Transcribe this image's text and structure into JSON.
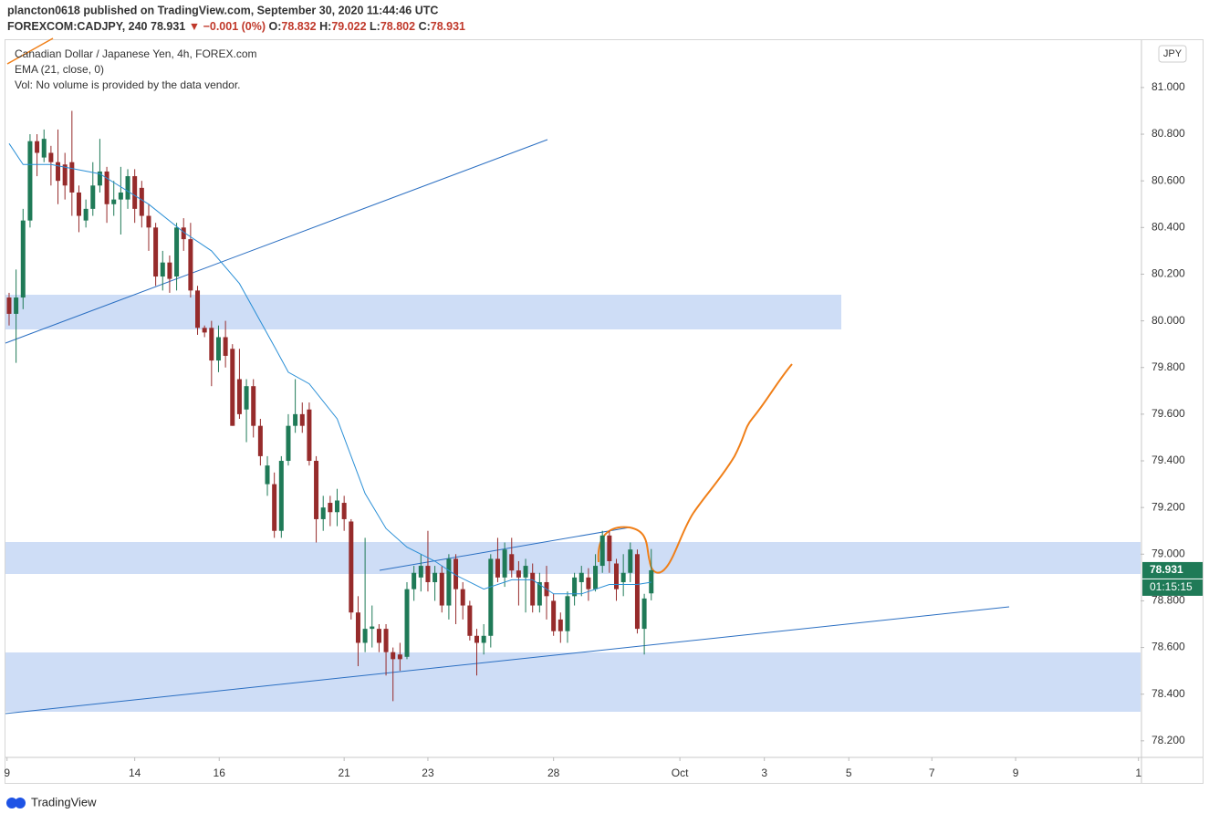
{
  "header": {
    "publisher": "plancton0618 published on TradingView.com, September 30, 2020 11:44:46 UTC",
    "symbol": "FOREXCOM:CADJPY, 240",
    "change": "▼ −0.001 (0%)",
    "ohlc_keys": [
      "O:",
      "H:",
      "L:",
      "C:"
    ],
    "instrument": "Canadian Dollar / Japanese Yen, 4h, FOREX.com",
    "volume_note": "Vol: No volume is provided by the data vendor.",
    "currency_button": "JPY",
    "brand": "TradingView"
  },
  "chart_data": {
    "type": "candlestick",
    "up_color": "#1f7a57",
    "down_color": "#962b2b",
    "open": [
      80.1,
      80.03,
      80.1,
      80.43,
      80.77,
      80.7,
      80.72,
      80.68,
      80.67,
      80.68,
      80.55,
      80.43,
      80.48,
      80.58,
      80.64,
      80.5,
      80.52,
      80.52,
      80.62,
      80.57,
      80.45,
      80.4,
      80.19,
      80.25,
      80.19,
      80.4,
      80.35,
      80.13,
      79.97,
      79.97,
      79.83,
      79.93,
      79.88,
      79.75,
      79.62,
      79.72,
      79.55,
      79.3,
      79.3,
      79.1,
      79.4,
      79.55,
      79.6,
      79.62,
      79.4,
      79.15,
      79.22,
      79.18,
      79.22,
      79.14,
      78.75,
      78.62,
      78.68,
      78.68,
      78.68,
      78.58,
      78.57,
      78.56,
      78.85,
      78.9,
      78.95,
      78.88,
      78.92,
      78.78,
      78.98,
      78.85,
      78.78,
      78.65,
      78.62,
      78.65,
      78.98,
      78.9,
      79.0,
      78.93,
      78.9,
      78.92,
      78.78,
      78.88,
      78.8,
      78.72,
      78.67,
      78.82,
      78.88,
      78.9,
      78.85,
      78.95,
      79.08,
      78.96,
      78.88,
      78.92,
      79.0,
      78.68,
      78.832
    ],
    "high": [
      80.12,
      80.22,
      80.48,
      80.8,
      80.8,
      80.82,
      80.75,
      80.82,
      80.72,
      80.9,
      80.58,
      80.52,
      80.68,
      80.78,
      80.66,
      80.6,
      80.66,
      80.65,
      80.65,
      80.6,
      80.5,
      80.42,
      80.3,
      80.28,
      80.42,
      80.44,
      80.42,
      80.15,
      79.98,
      80.0,
      79.98,
      80.0,
      79.9,
      79.88,
      79.75,
      79.75,
      79.58,
      79.42,
      79.35,
      79.42,
      79.6,
      79.75,
      79.65,
      79.65,
      79.42,
      79.25,
      79.25,
      79.28,
      79.25,
      79.15,
      78.82,
      79.07,
      78.78,
      78.7,
      78.7,
      78.6,
      78.62,
      78.88,
      78.95,
      79.0,
      79.1,
      78.95,
      78.95,
      79.0,
      79.0,
      78.88,
      78.8,
      78.68,
      78.7,
      79.0,
      79.07,
      79.05,
      79.07,
      78.97,
      78.98,
      78.96,
      78.92,
      78.95,
      78.83,
      78.75,
      78.84,
      78.92,
      78.95,
      78.94,
      79.0,
      79.1,
      79.1,
      78.98,
      79.0,
      79.05,
      79.02,
      78.83,
      79.022
    ],
    "low": [
      79.98,
      79.82,
      80.05,
      80.4,
      80.62,
      80.68,
      80.58,
      80.5,
      80.52,
      80.45,
      80.38,
      80.4,
      80.45,
      80.55,
      80.42,
      80.45,
      80.37,
      80.48,
      80.42,
      80.4,
      80.3,
      80.15,
      80.13,
      80.12,
      80.13,
      80.3,
      80.1,
      79.94,
      79.93,
      79.72,
      79.78,
      79.8,
      79.55,
      79.58,
      79.48,
      79.5,
      79.38,
      79.25,
      79.07,
      79.07,
      79.38,
      79.52,
      79.52,
      79.38,
      79.05,
      79.1,
      79.12,
      79.12,
      79.1,
      78.72,
      78.52,
      78.58,
      78.6,
      78.58,
      78.48,
      78.37,
      78.5,
      78.55,
      78.8,
      78.84,
      78.84,
      78.8,
      78.75,
      78.72,
      78.7,
      78.72,
      78.63,
      78.48,
      78.57,
      78.6,
      78.88,
      78.86,
      78.9,
      78.78,
      78.75,
      78.75,
      78.75,
      78.72,
      78.65,
      78.62,
      78.62,
      78.78,
      78.82,
      78.8,
      78.84,
      78.92,
      78.92,
      78.8,
      78.82,
      78.88,
      78.66,
      78.57,
      78.802
    ],
    "close": [
      80.03,
      80.1,
      80.43,
      80.77,
      80.72,
      80.78,
      80.68,
      80.6,
      80.58,
      80.55,
      80.45,
      80.48,
      80.58,
      80.64,
      80.5,
      80.52,
      80.55,
      80.62,
      80.48,
      80.45,
      80.4,
      80.19,
      80.25,
      80.18,
      80.4,
      80.35,
      80.13,
      79.97,
      79.95,
      79.83,
      79.93,
      79.85,
      79.55,
      79.6,
      79.72,
      79.55,
      79.42,
      79.38,
      79.1,
      79.4,
      79.55,
      79.6,
      79.55,
      79.4,
      79.15,
      79.2,
      79.18,
      79.23,
      79.15,
      78.75,
      78.62,
      78.68,
      78.69,
      78.62,
      78.58,
      78.55,
      78.55,
      78.85,
      78.92,
      78.95,
      78.88,
      78.92,
      78.78,
      78.98,
      78.85,
      78.78,
      78.65,
      78.62,
      78.65,
      78.98,
      78.9,
      79.02,
      78.93,
      78.9,
      78.95,
      78.78,
      78.88,
      78.82,
      78.67,
      78.67,
      78.82,
      78.9,
      78.92,
      78.85,
      78.95,
      79.08,
      78.97,
      78.85,
      78.92,
      79.02,
      78.68,
      78.81,
      78.931
    ],
    "ema": {
      "name": "EMA (21, close, 0)",
      "color": "#2a8fd6",
      "x": [
        0,
        2,
        6,
        13,
        20,
        25,
        29,
        33,
        38,
        40,
        43,
        47,
        51,
        54,
        57,
        61,
        64,
        68,
        72,
        75,
        78,
        82,
        86,
        90,
        92
      ],
      "values": [
        80.76,
        80.67,
        80.67,
        80.63,
        80.5,
        80.38,
        80.3,
        80.16,
        79.89,
        79.78,
        79.73,
        79.58,
        79.26,
        79.11,
        79.03,
        78.97,
        78.91,
        78.85,
        78.89,
        78.89,
        78.83,
        78.83,
        78.87,
        78.87,
        78.88
      ]
    },
    "countdown": "01:15:15",
    "xlim": [
      -0.52,
      162.1
    ],
    "ylim": [
      78.129,
      81.203
    ],
    "xticks": [
      {
        "value": -0.3,
        "label": "9"
      },
      {
        "value": 18,
        "label": "14"
      },
      {
        "value": 30.1,
        "label": "16"
      },
      {
        "value": 48,
        "label": "21"
      },
      {
        "value": 60,
        "label": "23"
      },
      {
        "value": 78,
        "label": "28"
      },
      {
        "value": 96.1,
        "label": "Oct"
      },
      {
        "value": 108.2,
        "label": "3"
      },
      {
        "value": 120.3,
        "label": "5"
      },
      {
        "value": 132.2,
        "label": "7"
      },
      {
        "value": 144.2,
        "label": "9"
      },
      {
        "value": 161.8,
        "label": "1"
      }
    ],
    "yticks": [
      {
        "value": 78.2,
        "label": "78.200"
      },
      {
        "value": 78.4,
        "label": "78.400"
      },
      {
        "value": 78.6,
        "label": "78.600"
      },
      {
        "value": 78.8,
        "label": "78.800"
      },
      {
        "value": 79.0,
        "label": "79.000"
      },
      {
        "value": 79.2,
        "label": "79.200"
      },
      {
        "value": 79.4,
        "label": "79.400"
      },
      {
        "value": 79.6,
        "label": "79.600"
      },
      {
        "value": 79.8,
        "label": "79.800"
      },
      {
        "value": 80.0,
        "label": "80.000"
      },
      {
        "value": 80.2,
        "label": "80.200"
      },
      {
        "value": 80.4,
        "label": "80.400"
      },
      {
        "value": 80.6,
        "label": "80.600"
      },
      {
        "value": 80.8,
        "label": "80.800"
      },
      {
        "value": 81.0,
        "label": "81.000"
      }
    ],
    "grid": false
  }
}
